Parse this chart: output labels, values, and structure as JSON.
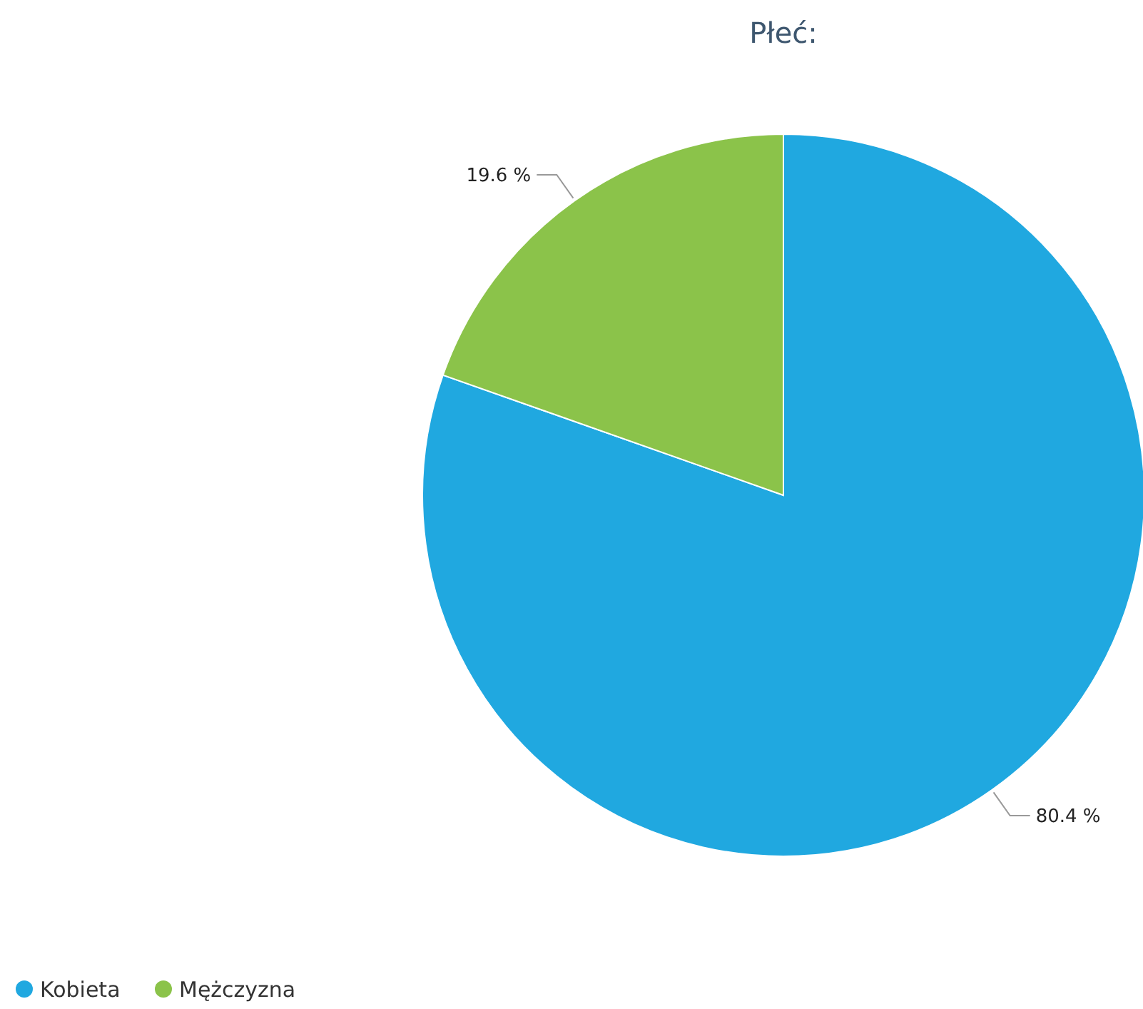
{
  "chart_data": {
    "type": "pie",
    "title": "Płeć:",
    "categories": [
      "Kobieta",
      "Mężczyzna"
    ],
    "values": [
      80.4,
      19.6
    ],
    "colors": [
      "#20a8e0",
      "#8bc34a"
    ],
    "value_labels": [
      "80.4 %",
      "19.6 %"
    ],
    "legend": "bottom left"
  }
}
